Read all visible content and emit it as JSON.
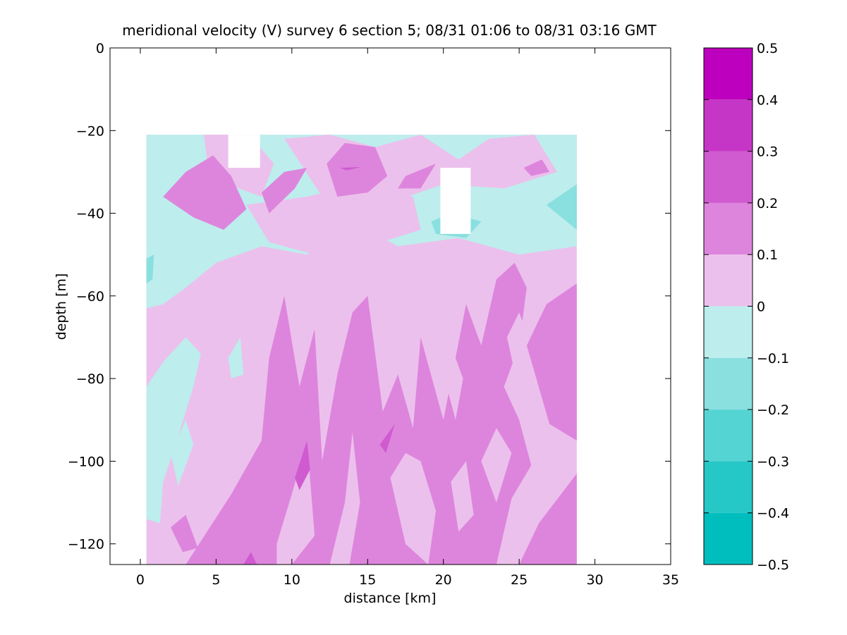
{
  "chart_data": {
    "type": "heatmap",
    "title": "meridional velocity (V) survey 6 section 5; 08/31 01:06 to 08/31 03:16 GMT",
    "xlabel": "distance [km]",
    "ylabel": "depth [m]",
    "xlim": [
      -2,
      35
    ],
    "ylim": [
      -125,
      0
    ],
    "x_ticks": [
      0,
      5,
      10,
      15,
      20,
      25,
      30,
      35
    ],
    "y_ticks": [
      0,
      -20,
      -40,
      -60,
      -80,
      -100,
      -120
    ],
    "data_extent": {
      "x": [
        0.4,
        28.8
      ],
      "y": [
        -125,
        -21
      ]
    },
    "data_gaps": [
      {
        "x": [
          5.8,
          7.9
        ],
        "y": [
          -29,
          -21
        ]
      },
      {
        "x": [
          19.8,
          21.8
        ],
        "y": [
          -45,
          -29
        ]
      }
    ],
    "colorbar": {
      "ticks": [
        -0.5,
        -0.4,
        -0.3,
        -0.2,
        -0.1,
        0,
        0.1,
        0.2,
        0.3,
        0.4,
        0.5
      ],
      "levels": [
        -0.5,
        -0.4,
        -0.3,
        -0.2,
        -0.1,
        0,
        0.1,
        0.2,
        0.3,
        0.4,
        0.5
      ],
      "colors": [
        "#00bebe",
        "#26c7c7",
        "#55d4d4",
        "#8adfdf",
        "#bdeded",
        "#ecc0ec",
        "#dd85dd",
        "#d05ad0",
        "#c636c6",
        "#bd00bd"
      ]
    },
    "regions": [
      {
        "value": 0.05,
        "polygon": [
          [
            0.4,
            -21
          ],
          [
            28.8,
            -21
          ],
          [
            28.8,
            -125
          ],
          [
            0.4,
            -125
          ]
        ]
      },
      {
        "value": -0.05,
        "polygon": [
          [
            0.4,
            -21
          ],
          [
            28.8,
            -21
          ],
          [
            28.8,
            -48
          ],
          [
            25,
            -50
          ],
          [
            21,
            -46
          ],
          [
            17,
            -48
          ],
          [
            14,
            -42
          ],
          [
            11,
            -50
          ],
          [
            8,
            -48
          ],
          [
            5,
            -52
          ],
          [
            3,
            -58
          ],
          [
            1.5,
            -62
          ],
          [
            0.4,
            -63
          ]
        ]
      },
      {
        "value": 0.05,
        "polygon": [
          [
            4.2,
            -21
          ],
          [
            7.2,
            -21
          ],
          [
            8.8,
            -28
          ],
          [
            8,
            -36
          ],
          [
            6.5,
            -34
          ],
          [
            4.5,
            -30
          ]
        ]
      },
      {
        "value": 0.05,
        "polygon": [
          [
            9.5,
            -22
          ],
          [
            12.5,
            -21
          ],
          [
            15.5,
            -24
          ],
          [
            18.5,
            -21
          ],
          [
            21,
            -27
          ],
          [
            23,
            -22
          ],
          [
            26,
            -21
          ],
          [
            27.5,
            -30
          ],
          [
            24,
            -34
          ],
          [
            20,
            -33
          ],
          [
            16,
            -38
          ],
          [
            12,
            -36
          ]
        ]
      },
      {
        "value": 0.05,
        "polygon": [
          [
            7,
            -38
          ],
          [
            11,
            -36
          ],
          [
            14.5,
            -33
          ],
          [
            18,
            -36
          ],
          [
            18.5,
            -44
          ],
          [
            15,
            -48
          ],
          [
            11.5,
            -50
          ],
          [
            8.5,
            -47
          ]
        ]
      },
      {
        "value": -0.05,
        "polygon": [
          [
            0.4,
            -82
          ],
          [
            1.5,
            -76
          ],
          [
            3,
            -70
          ],
          [
            4,
            -74
          ],
          [
            3.5,
            -82
          ],
          [
            2.5,
            -94
          ],
          [
            1.5,
            -105
          ],
          [
            1.3,
            -115
          ],
          [
            0.4,
            -114
          ]
        ]
      },
      {
        "value": -0.05,
        "polygon": [
          [
            2,
            -98
          ],
          [
            3,
            -90
          ],
          [
            3.5,
            -96
          ],
          [
            2.5,
            -106
          ]
        ]
      },
      {
        "value": -0.05,
        "polygon": [
          [
            5.8,
            -75
          ],
          [
            6.6,
            -70
          ],
          [
            6.8,
            -79
          ],
          [
            6,
            -80
          ]
        ]
      },
      {
        "value": -0.15,
        "polygon": [
          [
            26.8,
            -38
          ],
          [
            28.8,
            -33
          ],
          [
            28.8,
            -44
          ]
        ]
      },
      {
        "value": -0.15,
        "polygon": [
          [
            19.2,
            -42
          ],
          [
            20.5,
            -40
          ],
          [
            22.5,
            -42
          ],
          [
            21.5,
            -46
          ],
          [
            19.5,
            -45
          ]
        ]
      },
      {
        "value": -0.15,
        "polygon": [
          [
            0.4,
            -51
          ],
          [
            0.9,
            -50
          ],
          [
            0.8,
            -56
          ],
          [
            0.4,
            -57
          ]
        ]
      },
      {
        "value": 0.15,
        "polygon": [
          [
            1.5,
            -36
          ],
          [
            3,
            -30
          ],
          [
            4.8,
            -26
          ],
          [
            6,
            -31
          ],
          [
            7,
            -39
          ],
          [
            5.5,
            -44
          ],
          [
            3.5,
            -41
          ]
        ]
      },
      {
        "value": 0.15,
        "polygon": [
          [
            8,
            -35
          ],
          [
            9.5,
            -30
          ],
          [
            11,
            -29
          ],
          [
            10.2,
            -34
          ],
          [
            8.5,
            -40
          ]
        ]
      },
      {
        "value": 0.15,
        "polygon": [
          [
            12.3,
            -28
          ],
          [
            13.5,
            -23
          ],
          [
            15.5,
            -24
          ],
          [
            16.3,
            -31
          ],
          [
            15,
            -35
          ],
          [
            13,
            -36
          ]
        ]
      },
      {
        "value": 0.15,
        "polygon": [
          [
            17.5,
            -31
          ],
          [
            19.5,
            -28
          ],
          [
            18.5,
            -34
          ],
          [
            17,
            -34
          ]
        ]
      },
      {
        "value": 0.15,
        "polygon": [
          [
            25.3,
            -29
          ],
          [
            26.5,
            -27
          ],
          [
            27,
            -30
          ],
          [
            25.8,
            -31
          ]
        ]
      },
      {
        "value": 0.15,
        "polygon": [
          [
            3,
            -125
          ],
          [
            6,
            -108
          ],
          [
            8,
            -95
          ],
          [
            8.5,
            -75
          ],
          [
            9.5,
            -60
          ],
          [
            10.5,
            -82
          ],
          [
            11.5,
            -68
          ],
          [
            12,
            -100
          ],
          [
            13,
            -79
          ],
          [
            14,
            -64
          ],
          [
            15,
            -60
          ],
          [
            16,
            -88
          ],
          [
            17,
            -79
          ],
          [
            18,
            -92
          ],
          [
            18.5,
            -70
          ],
          [
            20,
            -90
          ],
          [
            20.8,
            -75
          ],
          [
            21.5,
            -62
          ],
          [
            22.5,
            -72
          ],
          [
            23.5,
            -56
          ],
          [
            24.7,
            -52
          ],
          [
            25.5,
            -58
          ],
          [
            25,
            -72
          ],
          [
            24,
            -82
          ],
          [
            25,
            -90
          ],
          [
            25.8,
            -101
          ],
          [
            24.5,
            -109
          ],
          [
            23.5,
            -125
          ]
        ]
      },
      {
        "value": 0.15,
        "polygon": [
          [
            25.5,
            -72
          ],
          [
            26.8,
            -62
          ],
          [
            28.8,
            -57
          ],
          [
            28.8,
            -95
          ],
          [
            27,
            -91
          ]
        ]
      },
      {
        "value": 0.15,
        "polygon": [
          [
            25,
            -125
          ],
          [
            26.3,
            -115
          ],
          [
            28.8,
            -103
          ],
          [
            28.8,
            -125
          ]
        ]
      },
      {
        "value": 0.15,
        "polygon": [
          [
            2,
            -116
          ],
          [
            3,
            -113
          ],
          [
            3.8,
            -121
          ],
          [
            2.8,
            -122
          ]
        ]
      },
      {
        "value": 0.05,
        "polygon": [
          [
            9,
            -120
          ],
          [
            10,
            -108
          ],
          [
            11,
            -95
          ],
          [
            11.5,
            -118
          ],
          [
            10,
            -125
          ],
          [
            9,
            -125
          ]
        ]
      },
      {
        "value": 0.05,
        "polygon": [
          [
            12.5,
            -125
          ],
          [
            13.5,
            -110
          ],
          [
            14,
            -93
          ],
          [
            14.5,
            -110
          ],
          [
            13.8,
            -125
          ]
        ]
      },
      {
        "value": 0.05,
        "polygon": [
          [
            16.5,
            -104
          ],
          [
            17.5,
            -98
          ],
          [
            18.5,
            -100
          ],
          [
            19.5,
            -112
          ],
          [
            19,
            -125
          ],
          [
            17.5,
            -120
          ]
        ]
      },
      {
        "value": 0.05,
        "polygon": [
          [
            20.5,
            -105
          ],
          [
            21.5,
            -100
          ],
          [
            22,
            -113
          ],
          [
            21,
            -117
          ]
        ]
      },
      {
        "value": 0.05,
        "polygon": [
          [
            22.5,
            -100
          ],
          [
            23.5,
            -92
          ],
          [
            24.5,
            -98
          ],
          [
            23.5,
            -110
          ]
        ]
      },
      {
        "value": 0.05,
        "polygon": [
          [
            20.5,
            -72
          ],
          [
            21.3,
            -80
          ],
          [
            20.8,
            -90
          ],
          [
            20.3,
            -83
          ]
        ]
      },
      {
        "value": 0.05,
        "polygon": [
          [
            24.2,
            -70
          ],
          [
            25,
            -64
          ],
          [
            25.6,
            -70
          ],
          [
            24.8,
            -80
          ]
        ]
      },
      {
        "value": 0.25,
        "polygon": [
          [
            10.2,
            -104
          ],
          [
            11,
            -95
          ],
          [
            11.2,
            -102
          ],
          [
            10.5,
            -107
          ]
        ]
      },
      {
        "value": 0.25,
        "polygon": [
          [
            15.8,
            -96
          ],
          [
            16.8,
            -91
          ],
          [
            16.2,
            -98
          ]
        ]
      },
      {
        "value": 0.25,
        "polygon": [
          [
            6.8,
            -125
          ],
          [
            7.3,
            -122
          ],
          [
            7.7,
            -125
          ]
        ]
      },
      {
        "value": 0.25,
        "polygon": [
          [
            13.2,
            -29
          ],
          [
            14.6,
            -28.8
          ],
          [
            13.6,
            -29.6
          ]
        ]
      }
    ]
  }
}
